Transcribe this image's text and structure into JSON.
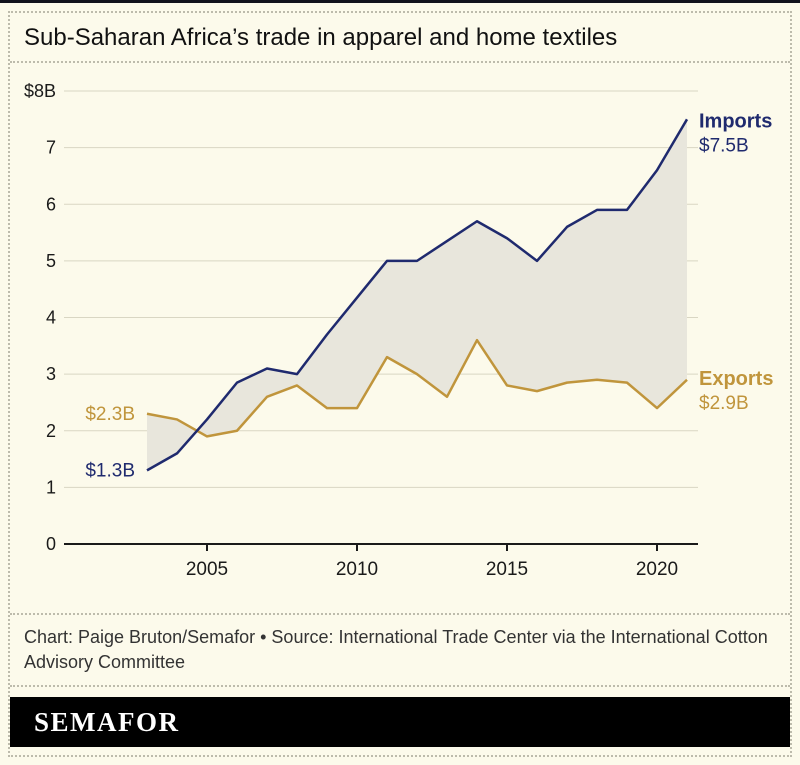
{
  "title": "Sub-Saharan Africa’s trade in apparel and home textiles",
  "credit": "Chart: Paige Bruton/Semafor • Source: International Trade Center via the International Cotton Advisory Committee",
  "logo": "SEMAFOR",
  "colors": {
    "background": "#fcfaeb",
    "imports": "#1f2a6e",
    "exports": "#c0953c",
    "area": "#e8e6dc",
    "grid": "#d9d6c3",
    "axis": "#1a1a1a"
  },
  "chart_data": {
    "type": "line",
    "title": "Sub-Saharan Africa’s trade in apparel and home textiles",
    "x": [
      2003,
      2004,
      2005,
      2006,
      2007,
      2008,
      2009,
      2010,
      2011,
      2012,
      2013,
      2014,
      2015,
      2016,
      2017,
      2018,
      2019,
      2020,
      2021
    ],
    "series": [
      {
        "name": "Imports",
        "color": "#1f2a6e",
        "start_label": "$1.3B",
        "end_label": "$7.5B",
        "values": [
          1.3,
          1.6,
          2.2,
          2.85,
          3.1,
          3.0,
          3.7,
          4.35,
          5.0,
          5.0,
          5.35,
          5.7,
          5.4,
          5.0,
          5.6,
          5.9,
          5.9,
          6.6,
          7.5
        ]
      },
      {
        "name": "Exports",
        "color": "#c0953c",
        "start_label": "$2.3B",
        "end_label": "$2.9B",
        "values": [
          2.3,
          2.2,
          1.9,
          2.0,
          2.6,
          2.8,
          2.4,
          2.4,
          3.3,
          3.0,
          2.6,
          3.6,
          2.8,
          2.7,
          2.85,
          2.9,
          2.85,
          2.4,
          2.9
        ]
      }
    ],
    "ylim": [
      0,
      8
    ],
    "ytick_labels": [
      "0",
      "1",
      "2",
      "3",
      "4",
      "5",
      "6",
      "7",
      "$8B"
    ],
    "xticks": [
      2005,
      2010,
      2015,
      2020
    ],
    "grid": "horizontal",
    "legend_position": "right-inline",
    "area_fill_between": true,
    "area_color": "#e8e6dc"
  }
}
